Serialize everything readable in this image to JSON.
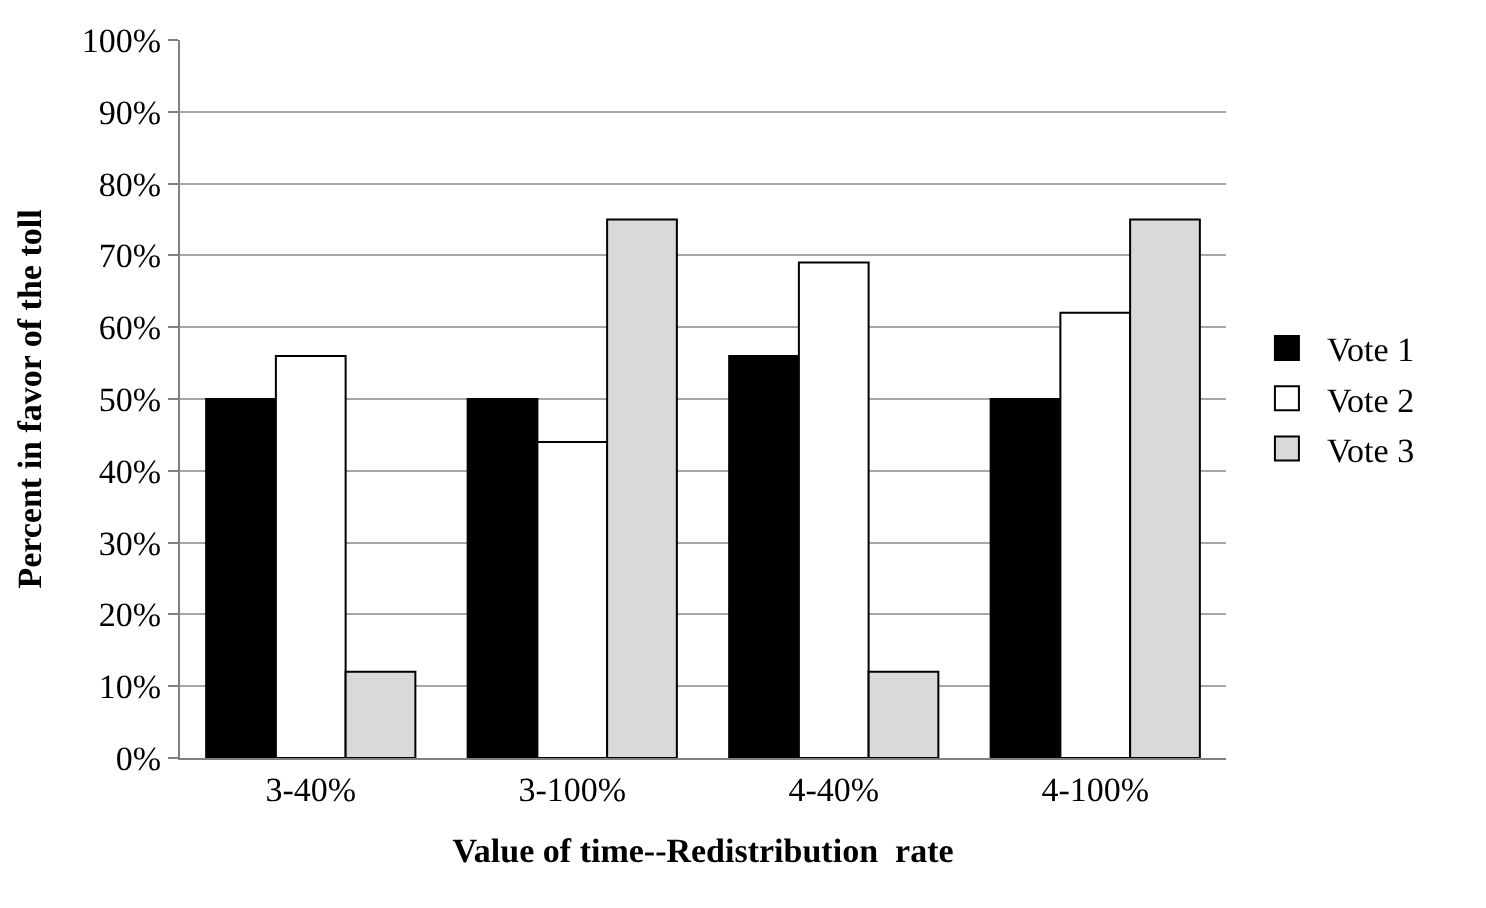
{
  "chart_data": {
    "type": "bar",
    "xlabel": "Value of time--Redistribution  rate",
    "ylabel": "Percent in favor of the toll",
    "categories": [
      "3-40%",
      "3-100%",
      "4-40%",
      "4-100%"
    ],
    "series": [
      {
        "name": "Vote 1",
        "color": "#000000",
        "values": [
          50,
          50,
          56,
          50
        ]
      },
      {
        "name": "Vote 2",
        "color": "#ffffff",
        "values": [
          56,
          44,
          69,
          62
        ]
      },
      {
        "name": "Vote 3",
        "color": "#d9d9d9",
        "values": [
          12,
          75,
          12,
          75
        ]
      }
    ],
    "ylim": [
      0,
      100
    ],
    "yticks": [
      {
        "value": 0,
        "label": "0%"
      },
      {
        "value": 10,
        "label": "10%"
      },
      {
        "value": 20,
        "label": "20%"
      },
      {
        "value": 30,
        "label": "30%"
      },
      {
        "value": 40,
        "label": "40%"
      },
      {
        "value": 50,
        "label": "50%"
      },
      {
        "value": 60,
        "label": "60%"
      },
      {
        "value": 70,
        "label": "70%"
      },
      {
        "value": 80,
        "label": "80%"
      },
      {
        "value": 90,
        "label": "90%"
      },
      {
        "value": 100,
        "label": "100%"
      }
    ],
    "grid": "y",
    "legend": "right"
  }
}
